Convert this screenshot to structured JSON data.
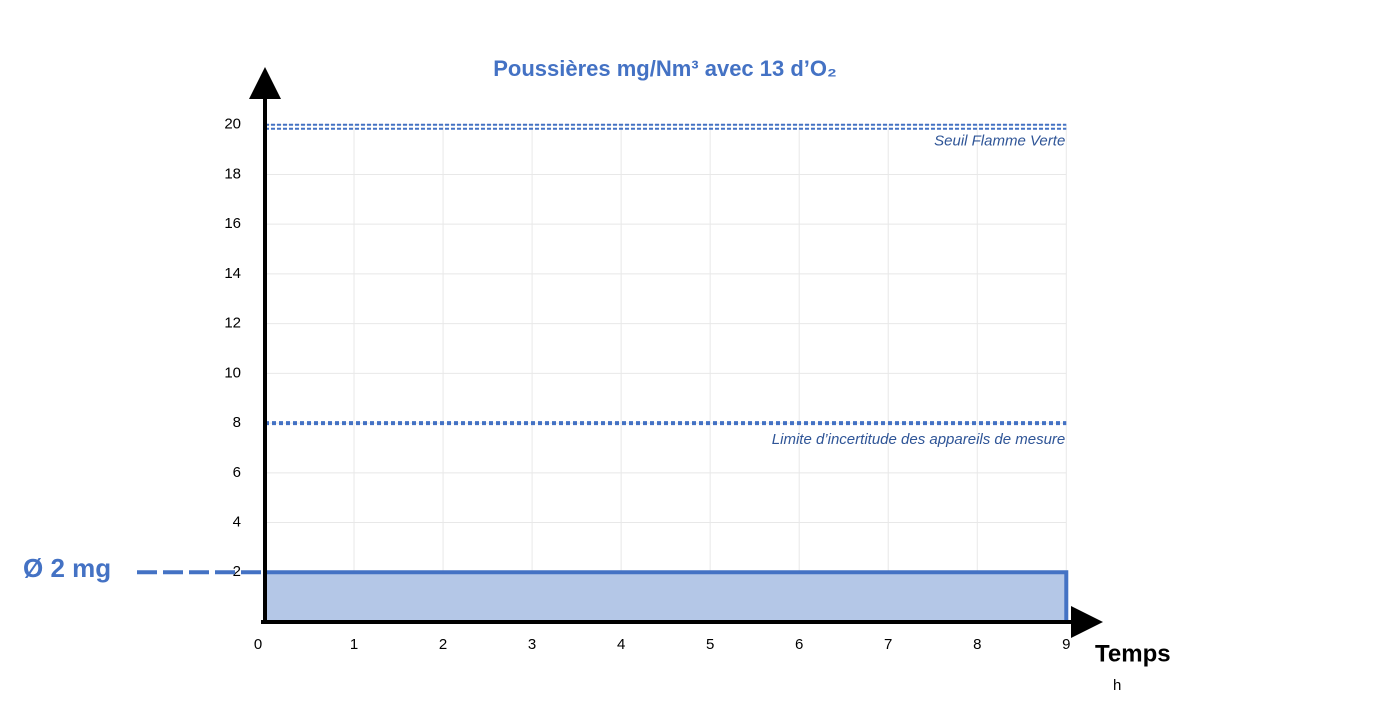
{
  "chart_data": {
    "type": "area",
    "title": "Poussières mg/Nm³ avec 13 d’O₂",
    "x": [
      0,
      9
    ],
    "values": [
      2,
      2
    ],
    "color": "#4472c4",
    "fill_color": "#b4c7e7",
    "xlim": [
      0,
      9.3
    ],
    "xticks": [
      0,
      1,
      2,
      3,
      4,
      5,
      6,
      7,
      8,
      9
    ],
    "ylim": [
      0,
      22
    ],
    "yticks": [
      2,
      4,
      6,
      8,
      10,
      12,
      14,
      16,
      18,
      20
    ],
    "grid": true,
    "x_label": "Temps",
    "x_unit": "h",
    "reference_lines": [
      {
        "value": 20,
        "label": "Seuil Flamme Verte"
      },
      {
        "value": 8,
        "label": "Limite d’incertitude des appareils de mesure"
      }
    ],
    "annotation": {
      "value": 2,
      "label": "Ø 2 mg"
    }
  }
}
